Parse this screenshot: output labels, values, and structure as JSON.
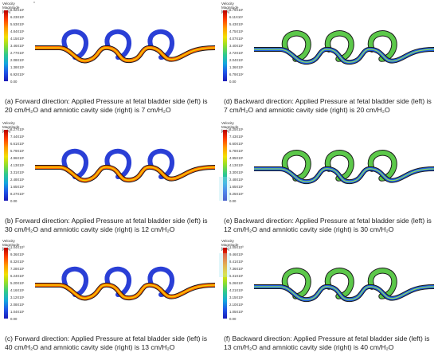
{
  "legend": {
    "title_line1": "Velocity",
    "title_line2": "Magnitude [m/s]"
  },
  "corner_mark": "*",
  "panels": {
    "a": {
      "ticks": [
        "6.92X10¹",
        "6.23X10¹",
        "5.53X10¹",
        "4.84X10¹",
        "4.15X10¹",
        "3.46X10¹",
        "2.77X10¹",
        "2.08X10¹",
        "1.38X10¹",
        "6.92X10²",
        "0.00"
      ],
      "caption": "(a) Forward direction: Applied Pressure at fetal bladder side (left) is 20 cm/H₂O and amniotic cavity side (right) is 7 cm/H₂O"
    },
    "d": {
      "ticks": [
        "6.79X10¹",
        "6.11X10¹",
        "5.43X10¹",
        "4.75X10¹",
        "4.07X10¹",
        "3.40X10¹",
        "2.72X10¹",
        "2.04X10¹",
        "1.36X10¹",
        "6.79X10²",
        "0.00"
      ],
      "caption": "(d) Backward direction: Applied Pressure at fetal bladder side (left) is 7 cm/H₂O and amniotic cavity side (right) is 20 cm/H₂O"
    },
    "b": {
      "ticks": [
        "8.27X10¹",
        "7.44X10¹",
        "6.61X10¹",
        "5.79X10¹",
        "4.96X10¹",
        "4.13X10¹",
        "3.31X10¹",
        "2.48X10¹",
        "1.65X10¹",
        "8.27X10²",
        "0.00"
      ],
      "caption": "(b) Forward direction: Applied Pressure at fetal bladder side (left) is 30 cm/H₂O and amniotic cavity side (right) is 12 cm/H₂O"
    },
    "e": {
      "ticks": [
        "8.25X10¹",
        "7.43X10¹",
        "6.60X10¹",
        "5.78X10¹",
        "4.95X10¹",
        "4.13X10¹",
        "3.30X10¹",
        "2.48X10¹",
        "1.65X10¹",
        "8.25X10²",
        "0.00"
      ],
      "caption": "(e) Backward direction: Applied Pressure at fetal bladder side (left) is 12 cm/H₂O and amniotic cavity side (right) is 30 cm/H₂O"
    },
    "c": {
      "ticks": [
        "1.04X10⁰",
        "9.36X10¹",
        "8.32X10¹",
        "7.28X10¹",
        "6.24X10¹",
        "5.20X10¹",
        "4.16X10¹",
        "3.12X10¹",
        "2.08X10¹",
        "1.04X10¹",
        "0.00"
      ],
      "caption": "(c) Forward direction: Applied Pressure at fetal bladder side (left) is 40 cm/H₂O and amniotic cavity side (right) is 13 cm/H₂O"
    },
    "f": {
      "ticks": [
        "1.05X10⁰",
        "9.46X10¹",
        "8.41X10¹",
        "7.36X10¹",
        "6.31X10¹",
        "5.26X10¹",
        "4.21X10¹",
        "3.15X10¹",
        "2.10X10¹",
        "1.05X10¹",
        "0.00"
      ],
      "caption": "(f) Backward direction: Applied Pressure at fetal bladder side (left) is 13 cm/H₂O and amniotic cavity side (right) is 40 cm/H₂O"
    }
  },
  "colors": {
    "forward_coil": "#2a3fd6",
    "forward_core": [
      "#c80000",
      "#ff6a00",
      "#f3d600"
    ],
    "backward_coil": "#5cc84a",
    "backward_core": [
      "#1f5fe0",
      "#3ab0f0",
      "#90e060"
    ],
    "tube_edge": "#1a1a1a"
  }
}
